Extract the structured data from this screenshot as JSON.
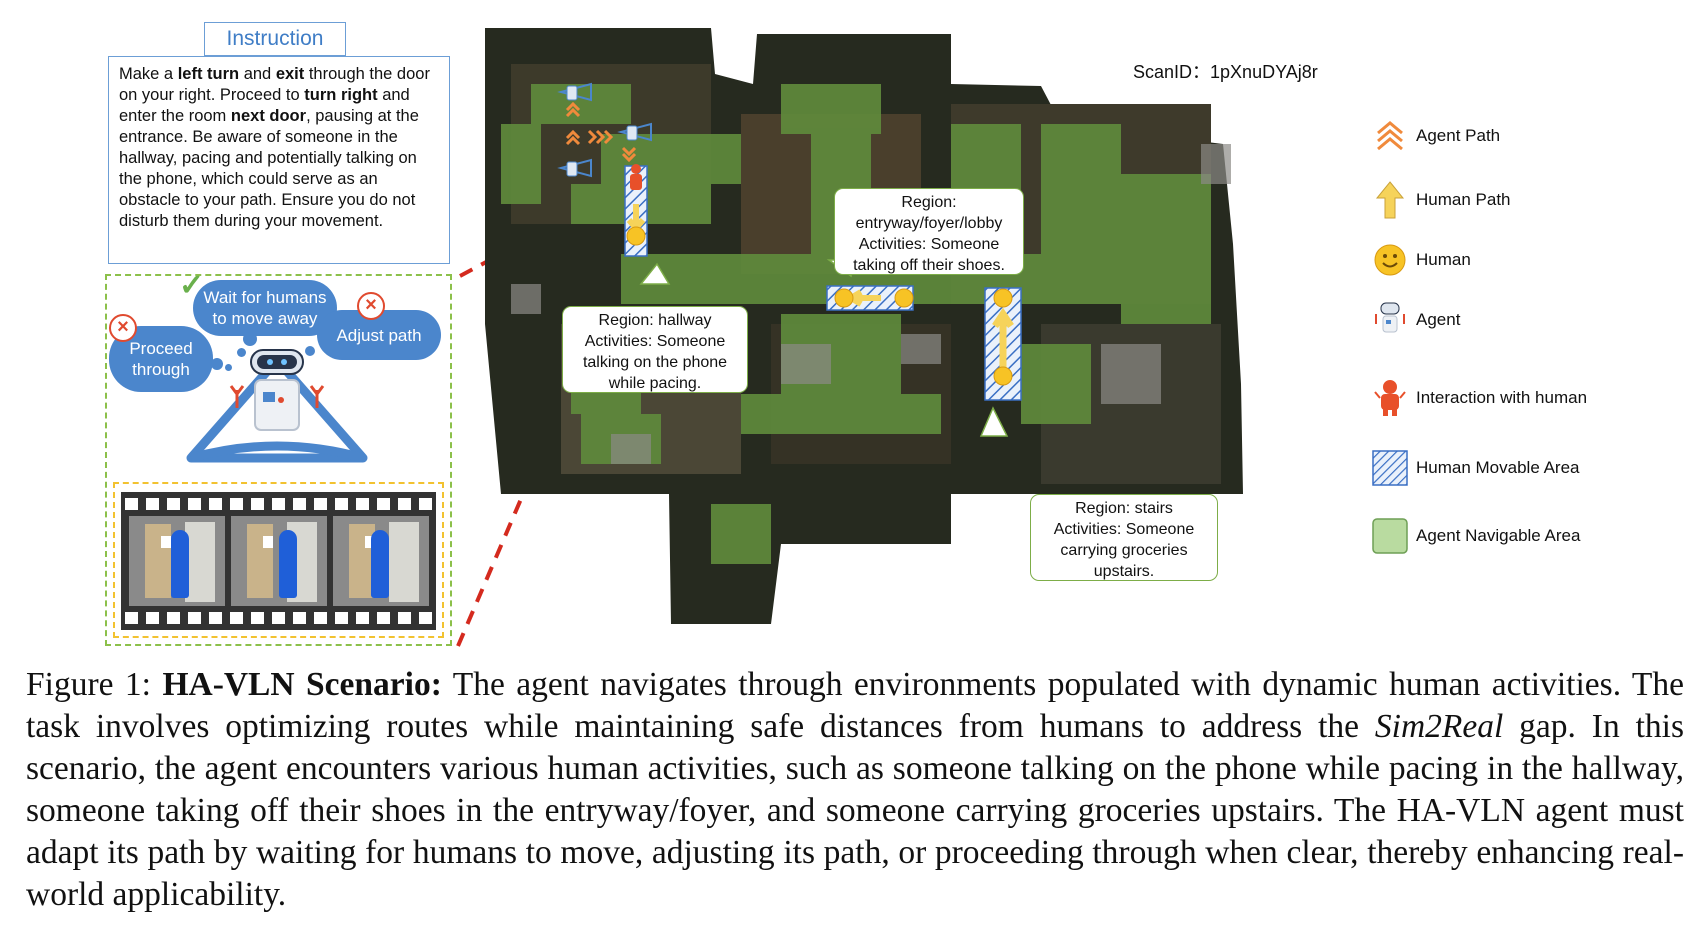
{
  "instruction": {
    "title": "Instruction",
    "segments": [
      {
        "text": "Make a ",
        "bold": false
      },
      {
        "text": "left turn",
        "bold": true
      },
      {
        "text": " and ",
        "bold": false
      },
      {
        "text": "exit",
        "bold": true
      },
      {
        "text": " through the door on your right. Proceed to ",
        "bold": false
      },
      {
        "text": "turn right",
        "bold": true
      },
      {
        "text": " and enter the room ",
        "bold": false
      },
      {
        "text": "next door",
        "bold": true
      },
      {
        "text": ", pausing at the entrance. Be aware of someone in the hallway, pacing and potentially talking on the phone, which could serve as an obstacle to your path. Ensure you do not disturb them during your movement.",
        "bold": false
      }
    ]
  },
  "decisions": {
    "wait": "Wait for humans to move away",
    "proceed": "Proceed through",
    "adjust": "Adjust path"
  },
  "map": {
    "scan_label": "ScanID：",
    "scan_id": "1pXnuDYAj8r",
    "regions": {
      "hallway": {
        "region": "Region: hallway",
        "activity": "Activities: Someone talking on the phone while pacing."
      },
      "entryway": {
        "region": "Region: entryway/foyer/lobby",
        "activity": "Activities: Someone taking off their shoes."
      },
      "stairs": {
        "region": "Region: stairs",
        "activity": "Activities: Someone carrying groceries upstairs."
      }
    }
  },
  "legend": [
    {
      "icon": "agent-path-chevron-icon",
      "label": "Agent Path"
    },
    {
      "icon": "human-path-arrow-icon",
      "label": "Human Path"
    },
    {
      "icon": "human-smiley-icon",
      "label": "Human"
    },
    {
      "icon": "agent-robot-icon",
      "label": "Agent"
    },
    {
      "icon": "interaction-figure-icon",
      "label": "Interaction with human"
    },
    {
      "icon": "hatched-square-icon",
      "label": "Human Movable Area"
    },
    {
      "icon": "green-square-icon",
      "label": "Agent Navigable Area"
    }
  ],
  "caption": {
    "prefix": "Figure 1: ",
    "bold": "HA-VLN Scenario:",
    "text1": " The agent navigates through environments populated with dynamic human activities. The task involves optimizing routes while maintaining safe distances from humans to address the ",
    "italic": "Sim2Real",
    "text2": " gap. In this scenario, the agent encounters various human activities, such as someone talking on the phone while pacing in the hallway, someone taking off their shoes in the entryway/foyer, and someone carrying groceries upstairs. The HA-VLN agent must adapt its path by waiting for humans to move, adjusting its path, or proceeding through when clear, thereby enhancing real-world applicability."
  },
  "colors": {
    "agent_path": "#f08a3c",
    "human_path": "#f6d35a",
    "human": "#f7c325",
    "interaction": "#e8502a",
    "hatch": "#3a6fc4",
    "navigable": "#b9dba0",
    "bubble_border": "#7dad48",
    "cloud": "#4b86cc",
    "dashed_line": "#d42a1e"
  }
}
